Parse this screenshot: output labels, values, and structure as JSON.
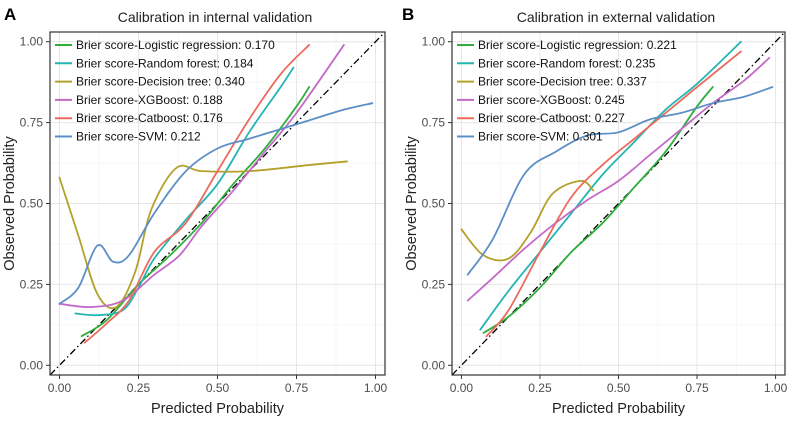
{
  "chart_data": [
    {
      "type": "line",
      "panel_label": "A",
      "title": "Calibration in internal validation",
      "xlabel": "Predicted Probability",
      "ylabel": "Observed Probability",
      "xlim": [
        -0.03,
        1.03
      ],
      "ylim": [
        -0.03,
        1.03
      ],
      "xticks": [
        0,
        0.25,
        0.5,
        0.75,
        1
      ],
      "xtick_labels": [
        "0.00",
        "0.25",
        "0.50",
        "0.75",
        "1.00"
      ],
      "yticks": [
        0,
        0.25,
        0.5,
        0.75,
        1
      ],
      "ytick_labels": [
        "0.00",
        "0.25",
        "0.50",
        "0.75",
        "1.00"
      ],
      "grid": true,
      "legend_position": "top-left",
      "reference_line": {
        "name": "Ideal calibration",
        "style": "dash-dot",
        "color": "#000000",
        "x": [
          -0.03,
          1.03
        ],
        "y": [
          -0.03,
          1.03
        ]
      },
      "series": [
        {
          "name": "Brier score-Logistic regression: 0.170",
          "color": "#2fae3c",
          "x": [
            0.07,
            0.15,
            0.25,
            0.35,
            0.45,
            0.55,
            0.65,
            0.75,
            0.79
          ],
          "y": [
            0.09,
            0.14,
            0.25,
            0.34,
            0.44,
            0.56,
            0.67,
            0.8,
            0.86
          ]
        },
        {
          "name": "Brier score-Random forest: 0.184",
          "color": "#24b4b4",
          "x": [
            0.05,
            0.12,
            0.2,
            0.25,
            0.3,
            0.4,
            0.5,
            0.6,
            0.7,
            0.74
          ],
          "y": [
            0.16,
            0.155,
            0.17,
            0.24,
            0.33,
            0.45,
            0.56,
            0.72,
            0.86,
            0.92
          ]
        },
        {
          "name": "Brier score-Decision tree: 0.340",
          "color": "#b3a12a",
          "x": [
            0.0,
            0.06,
            0.12,
            0.18,
            0.24,
            0.29,
            0.37,
            0.45,
            0.6,
            0.8,
            0.91
          ],
          "y": [
            0.58,
            0.4,
            0.22,
            0.18,
            0.29,
            0.48,
            0.61,
            0.6,
            0.6,
            0.62,
            0.63
          ]
        },
        {
          "name": "Brier score-XGBoost: 0.188",
          "color": "#c46ac8",
          "x": [
            0.0,
            0.1,
            0.2,
            0.3,
            0.38,
            0.45,
            0.55,
            0.65,
            0.75,
            0.9
          ],
          "y": [
            0.19,
            0.18,
            0.2,
            0.28,
            0.34,
            0.43,
            0.54,
            0.66,
            0.78,
            0.99
          ]
        },
        {
          "name": "Brier score-Catboost: 0.176",
          "color": "#ec6b5c",
          "x": [
            0.08,
            0.15,
            0.22,
            0.3,
            0.4,
            0.5,
            0.6,
            0.7,
            0.79
          ],
          "y": [
            0.07,
            0.13,
            0.2,
            0.35,
            0.44,
            0.6,
            0.76,
            0.9,
            0.99
          ]
        },
        {
          "name": "Brier score-SVM: 0.212",
          "color": "#5c8fc6",
          "x": [
            0.0,
            0.06,
            0.12,
            0.17,
            0.22,
            0.3,
            0.4,
            0.5,
            0.6,
            0.7,
            0.8,
            0.9,
            0.99
          ],
          "y": [
            0.19,
            0.24,
            0.37,
            0.32,
            0.34,
            0.47,
            0.6,
            0.67,
            0.7,
            0.73,
            0.76,
            0.79,
            0.81
          ]
        }
      ]
    },
    {
      "type": "line",
      "panel_label": "B",
      "title": "Calibration in external validation",
      "xlabel": "Predicted Probability",
      "ylabel": "Observed Probability",
      "xlim": [
        -0.03,
        1.03
      ],
      "ylim": [
        -0.03,
        1.03
      ],
      "xticks": [
        0,
        0.25,
        0.5,
        0.75,
        1
      ],
      "xtick_labels": [
        "0.00",
        "0.25",
        "0.50",
        "0.75",
        "1.00"
      ],
      "yticks": [
        0,
        0.25,
        0.5,
        0.75,
        1
      ],
      "ytick_labels": [
        "0.00",
        "0.25",
        "0.50",
        "0.75",
        "1.00"
      ],
      "grid": true,
      "legend_position": "top-left",
      "reference_line": {
        "name": "Ideal calibration",
        "style": "dash-dot",
        "color": "#000000",
        "x": [
          -0.03,
          1.03
        ],
        "y": [
          -0.03,
          1.03
        ]
      },
      "series": [
        {
          "name": "Brier score-Logistic regression: 0.221",
          "color": "#2fae3c",
          "x": [
            0.07,
            0.15,
            0.25,
            0.35,
            0.45,
            0.55,
            0.65,
            0.75,
            0.8
          ],
          "y": [
            0.1,
            0.15,
            0.24,
            0.35,
            0.44,
            0.55,
            0.66,
            0.8,
            0.86
          ]
        },
        {
          "name": "Brier score-Random forest: 0.235",
          "color": "#24b4b4",
          "x": [
            0.06,
            0.15,
            0.25,
            0.35,
            0.45,
            0.55,
            0.65,
            0.75,
            0.89
          ],
          "y": [
            0.11,
            0.23,
            0.35,
            0.47,
            0.59,
            0.69,
            0.79,
            0.87,
            1.0
          ]
        },
        {
          "name": "Brier score-Decision tree: 0.337",
          "color": "#b3a12a",
          "x": [
            0.0,
            0.07,
            0.15,
            0.22,
            0.29,
            0.38,
            0.42
          ],
          "y": [
            0.42,
            0.34,
            0.33,
            0.41,
            0.53,
            0.57,
            0.54
          ]
        },
        {
          "name": "Brier score-XGBoost: 0.245",
          "color": "#c46ac8",
          "x": [
            0.02,
            0.1,
            0.2,
            0.3,
            0.4,
            0.5,
            0.6,
            0.7,
            0.8,
            0.9,
            0.98
          ],
          "y": [
            0.2,
            0.27,
            0.36,
            0.44,
            0.51,
            0.57,
            0.65,
            0.73,
            0.81,
            0.88,
            0.95
          ]
        },
        {
          "name": "Brier score-Catboost: 0.227",
          "color": "#ec6b5c",
          "x": [
            0.08,
            0.15,
            0.25,
            0.35,
            0.45,
            0.55,
            0.65,
            0.75,
            0.89
          ],
          "y": [
            0.09,
            0.17,
            0.35,
            0.52,
            0.62,
            0.7,
            0.78,
            0.86,
            0.97
          ]
        },
        {
          "name": "Brier score-SVM: 0.301",
          "color": "#5c8fc6",
          "x": [
            0.02,
            0.1,
            0.2,
            0.3,
            0.4,
            0.5,
            0.6,
            0.7,
            0.8,
            0.9,
            0.99
          ],
          "y": [
            0.28,
            0.39,
            0.59,
            0.66,
            0.71,
            0.72,
            0.76,
            0.78,
            0.81,
            0.83,
            0.86
          ]
        }
      ]
    }
  ]
}
